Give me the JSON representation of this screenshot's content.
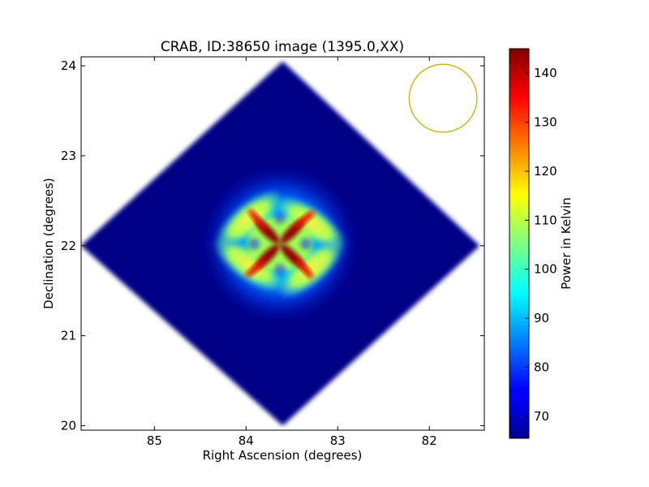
{
  "chart_data": {
    "type": "heatmap",
    "title": "CRAB, ID:38650 image (1395.0,XX)",
    "xlabel": "Right Ascension (degrees)",
    "ylabel": "Declination (degrees)",
    "x_inverted": true,
    "xlim": [
      85.8,
      81.4
    ],
    "ylim": [
      19.95,
      24.1
    ],
    "x_ticks": [
      85,
      84,
      83,
      82
    ],
    "y_ticks": [
      20,
      21,
      22,
      23,
      24
    ],
    "colorbar": {
      "label": "Power in Kelvin",
      "colormap": "jet",
      "range": [
        65.5,
        145
      ],
      "ticks": [
        70,
        80,
        90,
        100,
        110,
        120,
        130,
        140
      ]
    },
    "background_level_K": 66,
    "mapped_region": {
      "shape": "diamond",
      "center": [
        83.63,
        22.02
      ],
      "corners": {
        "top": [
          83.6,
          24.05
        ],
        "bottom": [
          83.6,
          20.0
        ],
        "left": [
          85.8,
          22.0
        ],
        "right": [
          81.45,
          22.0
        ]
      }
    },
    "source": {
      "center": [
        83.63,
        22.02
      ],
      "peak_K": 145,
      "pattern": "four-lobed cross (beam sidelobes)"
    },
    "beam_circle": {
      "center": [
        81.85,
        23.64
      ],
      "radius_deg": 0.37,
      "color": "#bfb400"
    }
  }
}
